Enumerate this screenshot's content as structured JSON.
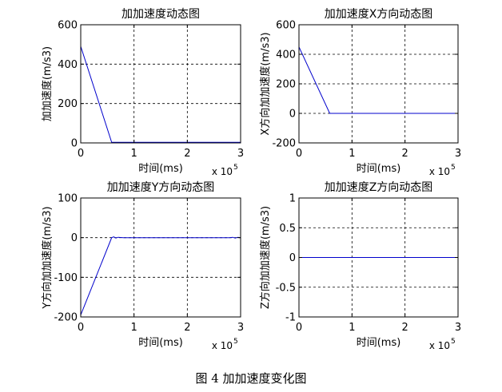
{
  "figure_caption": "图 4  加加速度变化图",
  "chart_data": [
    {
      "type": "line",
      "title": "加加速度动态图",
      "xlabel": "时间(ms)",
      "ylabel": "加加速度(m/s3)",
      "x_multiplier": "x 10",
      "x_multiplier_exp": "5",
      "xlim": [
        0,
        3
      ],
      "ylim": [
        0,
        600
      ],
      "xticks": [
        "0",
        "1",
        "2",
        "3"
      ],
      "yticks": [
        "0",
        "200",
        "400",
        "600"
      ],
      "grid": true,
      "line_color": "#0000cc",
      "x": [
        0,
        0.58,
        3
      ],
      "y": [
        490,
        3,
        3
      ]
    },
    {
      "type": "line",
      "title": "加加速度X方向动态图",
      "xlabel": "时间(ms)",
      "ylabel": "X方向加加速度(m/s3)",
      "x_multiplier": "x 10",
      "x_multiplier_exp": "5",
      "xlim": [
        0,
        3
      ],
      "ylim": [
        -200,
        600
      ],
      "xticks": [
        "0",
        "1",
        "2",
        "3"
      ],
      "yticks": [
        "-200",
        "0",
        "200",
        "400",
        "600"
      ],
      "grid": true,
      "line_color": "#0000cc",
      "x": [
        0,
        0.58,
        3
      ],
      "y": [
        450,
        0,
        0
      ]
    },
    {
      "type": "line",
      "title": "加加速度Y方向动态图",
      "xlabel": "时间(ms)",
      "ylabel": "Y方向加加速度(m/s3)",
      "x_multiplier": "x 10",
      "x_multiplier_exp": "5",
      "xlim": [
        0,
        3
      ],
      "ylim": [
        -200,
        100
      ],
      "xticks": [
        "0",
        "1",
        "2",
        "3"
      ],
      "yticks": [
        "-200",
        "-100",
        "0",
        "100"
      ],
      "grid": true,
      "line_color": "#0000cc",
      "x": [
        0,
        0.58,
        0.62,
        0.66,
        0.7,
        0.8,
        2.8,
        2.85,
        2.9,
        2.95,
        3
      ],
      "y": [
        -195,
        0,
        2,
        -1,
        1,
        0,
        0,
        1,
        -1,
        1,
        0
      ]
    },
    {
      "type": "line",
      "title": "加加速度Z方向动态图",
      "xlabel": "时间(ms)",
      "ylabel": "Z方向加加速度(m/s3)",
      "x_multiplier": "x 10",
      "x_multiplier_exp": "5",
      "xlim": [
        0,
        3
      ],
      "ylim": [
        -1,
        1
      ],
      "xticks": [
        "0",
        "1",
        "2",
        "3"
      ],
      "yticks": [
        "-1",
        "-0.5",
        "0",
        "0.5",
        "1"
      ],
      "grid": true,
      "line_color": "#0000cc",
      "x": [
        0,
        3
      ],
      "y": [
        0,
        0
      ]
    }
  ]
}
